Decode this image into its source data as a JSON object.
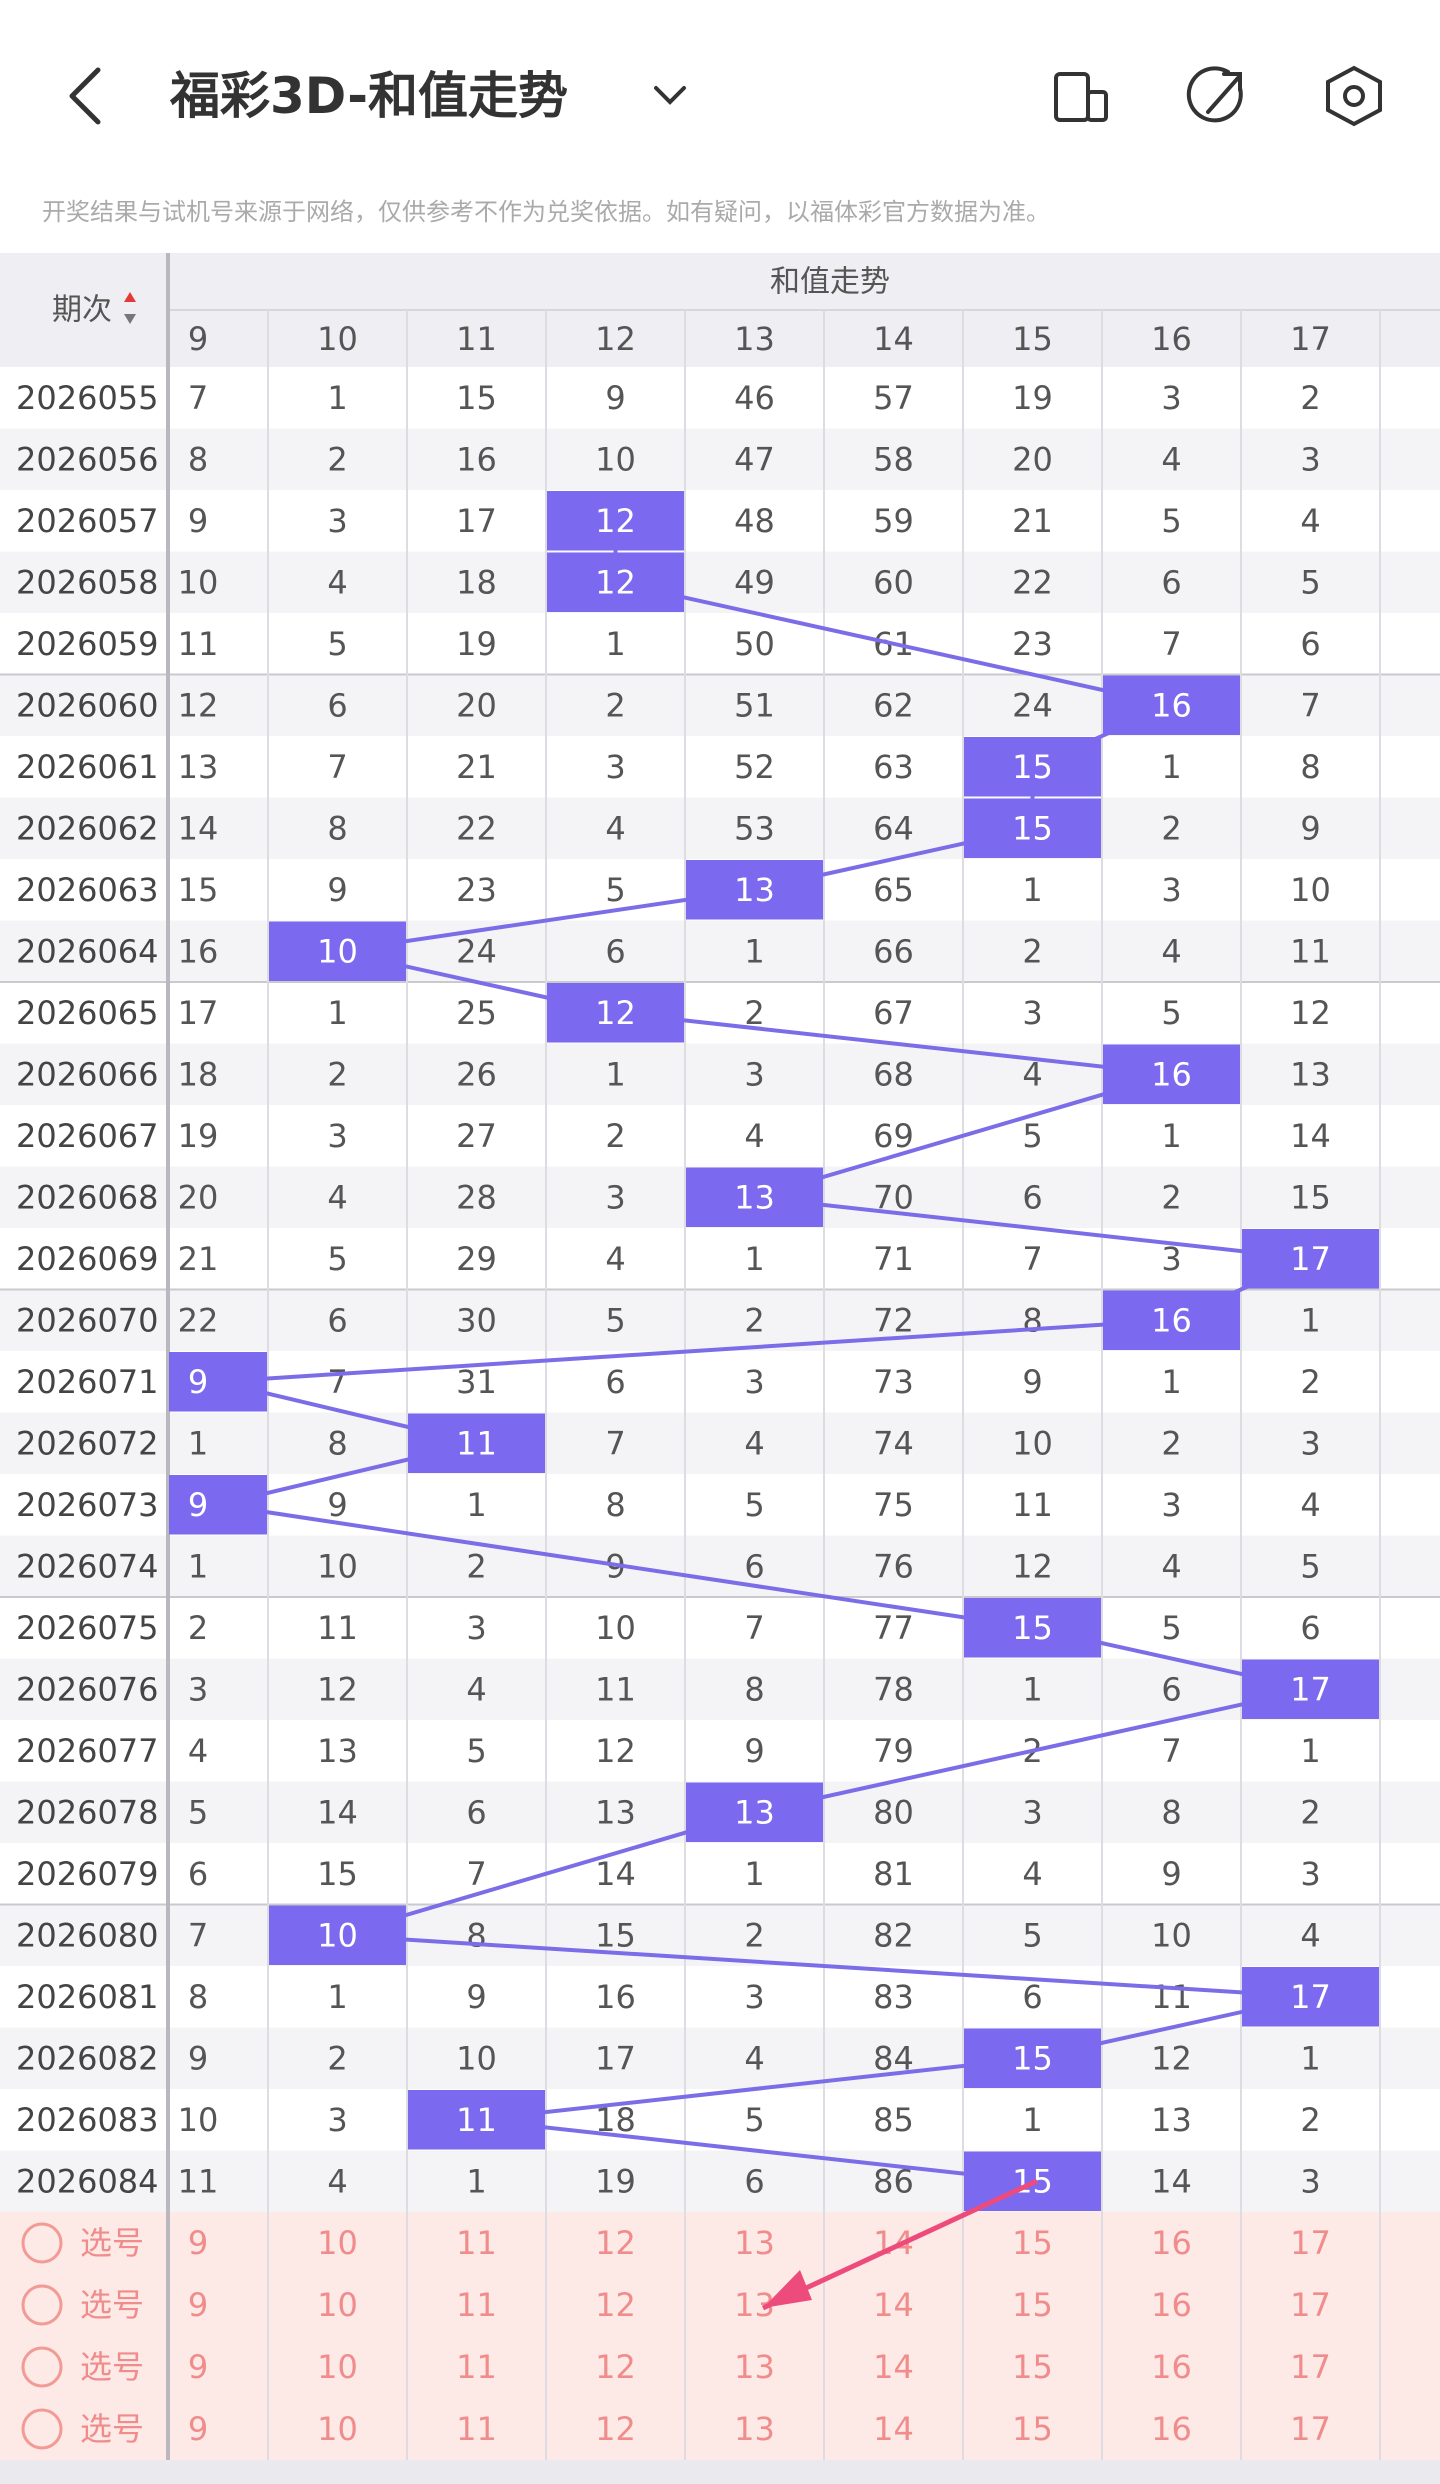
{
  "header": {
    "title": "福彩3D-和值走势"
  },
  "notice": "开奖结果与试机号来源于网络，仅供参考不作为兑奖依据。如有疑问，以福体彩官方数据为准。",
  "table": {
    "period_header": "期次",
    "trend_header": "和值走势",
    "columns": [
      9,
      10,
      11,
      12,
      13,
      14,
      15,
      16,
      17
    ],
    "rows": [
      {
        "period": "2026055",
        "cells": [
          7,
          1,
          15,
          9,
          46,
          57,
          19,
          3,
          2
        ],
        "hit": null
      },
      {
        "period": "2026056",
        "cells": [
          8,
          2,
          16,
          10,
          47,
          58,
          20,
          4,
          3
        ],
        "hit": null
      },
      {
        "period": "2026057",
        "cells": [
          9,
          3,
          17,
          12,
          48,
          59,
          21,
          5,
          4
        ],
        "hit": 3
      },
      {
        "period": "2026058",
        "cells": [
          10,
          4,
          18,
          12,
          49,
          60,
          22,
          6,
          5
        ],
        "hit": 3
      },
      {
        "period": "2026059",
        "cells": [
          11,
          5,
          19,
          1,
          50,
          61,
          23,
          7,
          6
        ],
        "hit": null
      },
      {
        "period": "2026060",
        "cells": [
          12,
          6,
          20,
          2,
          51,
          62,
          24,
          16,
          7
        ],
        "hit": 7
      },
      {
        "period": "2026061",
        "cells": [
          13,
          7,
          21,
          3,
          52,
          63,
          15,
          1,
          8
        ],
        "hit": 6
      },
      {
        "period": "2026062",
        "cells": [
          14,
          8,
          22,
          4,
          53,
          64,
          15,
          2,
          9
        ],
        "hit": 6
      },
      {
        "period": "2026063",
        "cells": [
          15,
          9,
          23,
          5,
          13,
          65,
          1,
          3,
          10
        ],
        "hit": 4
      },
      {
        "period": "2026064",
        "cells": [
          16,
          10,
          24,
          6,
          1,
          66,
          2,
          4,
          11
        ],
        "hit": 1
      },
      {
        "period": "2026065",
        "cells": [
          17,
          1,
          25,
          12,
          2,
          67,
          3,
          5,
          12
        ],
        "hit": 3
      },
      {
        "period": "2026066",
        "cells": [
          18,
          2,
          26,
          1,
          3,
          68,
          4,
          16,
          13
        ],
        "hit": 7
      },
      {
        "period": "2026067",
        "cells": [
          19,
          3,
          27,
          2,
          4,
          69,
          5,
          1,
          14
        ],
        "hit": null
      },
      {
        "period": "2026068",
        "cells": [
          20,
          4,
          28,
          3,
          13,
          70,
          6,
          2,
          15
        ],
        "hit": 4
      },
      {
        "period": "2026069",
        "cells": [
          21,
          5,
          29,
          4,
          1,
          71,
          7,
          3,
          17
        ],
        "hit": 8
      },
      {
        "period": "2026070",
        "cells": [
          22,
          6,
          30,
          5,
          2,
          72,
          8,
          16,
          1
        ],
        "hit": 7
      },
      {
        "period": "2026071",
        "cells": [
          9,
          7,
          31,
          6,
          3,
          73,
          9,
          1,
          2
        ],
        "hit": 0
      },
      {
        "period": "2026072",
        "cells": [
          1,
          8,
          11,
          7,
          4,
          74,
          10,
          2,
          3
        ],
        "hit": 2
      },
      {
        "period": "2026073",
        "cells": [
          9,
          9,
          1,
          8,
          5,
          75,
          11,
          3,
          4
        ],
        "hit": 0
      },
      {
        "period": "2026074",
        "cells": [
          1,
          10,
          2,
          9,
          6,
          76,
          12,
          4,
          5
        ],
        "hit": null
      },
      {
        "period": "2026075",
        "cells": [
          2,
          11,
          3,
          10,
          7,
          77,
          15,
          5,
          6
        ],
        "hit": 6
      },
      {
        "period": "2026076",
        "cells": [
          3,
          12,
          4,
          11,
          8,
          78,
          1,
          6,
          17
        ],
        "hit": 8
      },
      {
        "period": "2026077",
        "cells": [
          4,
          13,
          5,
          12,
          9,
          79,
          2,
          7,
          1
        ],
        "hit": null
      },
      {
        "period": "2026078",
        "cells": [
          5,
          14,
          6,
          13,
          13,
          80,
          3,
          8,
          2
        ],
        "hit": 4
      },
      {
        "period": "2026079",
        "cells": [
          6,
          15,
          7,
          14,
          1,
          81,
          4,
          9,
          3
        ],
        "hit": null
      },
      {
        "period": "2026080",
        "cells": [
          7,
          10,
          8,
          15,
          2,
          82,
          5,
          10,
          4
        ],
        "hit": 1
      },
      {
        "period": "2026081",
        "cells": [
          8,
          1,
          9,
          16,
          3,
          83,
          6,
          11,
          17
        ],
        "hit": 8
      },
      {
        "period": "2026082",
        "cells": [
          9,
          2,
          10,
          17,
          4,
          84,
          15,
          12,
          1
        ],
        "hit": 6
      },
      {
        "period": "2026083",
        "cells": [
          10,
          3,
          11,
          18,
          5,
          85,
          1,
          13,
          2
        ],
        "hit": 2
      },
      {
        "period": "2026084",
        "cells": [
          11,
          4,
          1,
          19,
          6,
          86,
          15,
          14,
          3
        ],
        "hit": 6
      }
    ]
  },
  "select": {
    "labels": [
      "选号",
      "选号",
      "选号",
      "选号"
    ]
  }
}
